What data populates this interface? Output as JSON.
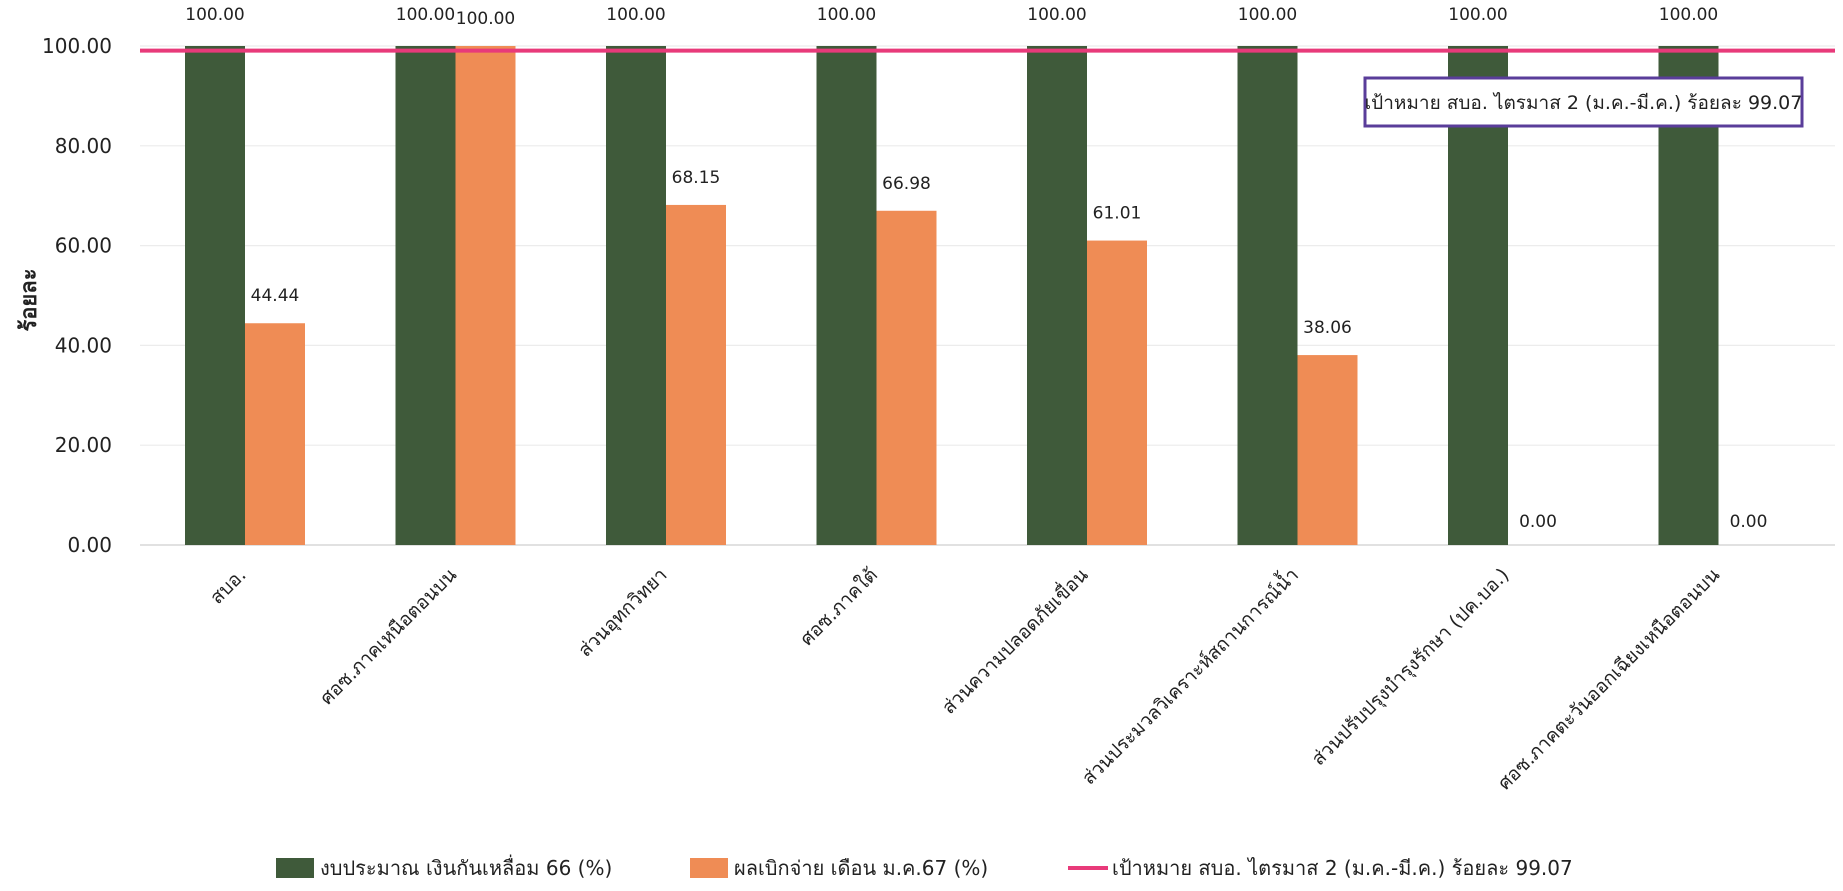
{
  "chart_data": {
    "type": "bar",
    "title": "",
    "xlabel": "",
    "ylabel": "ร้อยละ",
    "ylim": [
      0,
      100
    ],
    "yticks": [
      "0.00",
      "20.00",
      "40.00",
      "60.00",
      "80.00",
      "100.00"
    ],
    "categories": [
      "สบอ.",
      "ศอซ.ภาคเหนือตอนบน",
      "ส่วนอุทกวิทยา",
      "ศอซ.ภาคใต้",
      "ส่วนความปลอดภัยเขื่อน",
      "ส่วนประมวลวิเคราะห์สถานการณ์น้ำ",
      "ส่วนปรับปรุงบำรุงรักษา (ปค.บอ.)",
      "ศอซ.ภาคตะวันออกเฉียงเหนือตอนบน"
    ],
    "series": [
      {
        "name": "งบประมาณ เงินกันเหลื่อม 66 (%)",
        "color": "#3f5a3a",
        "values": [
          100,
          100,
          100,
          100,
          100,
          100,
          100,
          100
        ],
        "labels": [
          "100.00",
          "100.00",
          "100.00",
          "100.00",
          "100.00",
          "100.00",
          "100.00",
          "100.00"
        ]
      },
      {
        "name": "ผลเบิกจ่าย เดือน ม.ค.67  (%)",
        "color": "#ef8c55",
        "values": [
          44.44,
          100,
          68.15,
          66.98,
          61.01,
          38.06,
          0,
          0
        ],
        "labels": [
          "44.44",
          "100.00",
          "68.15",
          "66.98",
          "61.01",
          "38.06",
          "0.00",
          "0.00"
        ]
      }
    ],
    "target": {
      "name": "เป้าหมาย สบอ. ไตรมาส 2 (ม.ค.-มี.ค.) ร้อยละ 99.07",
      "value": 99.07,
      "color": "#e83a7a",
      "annotation": "เป้าหมาย สบอ. ไตรมาส 2 (ม.ค.-มี.ค.) ร้อยละ 99.07"
    },
    "grid": true,
    "legend_position": "bottom"
  }
}
